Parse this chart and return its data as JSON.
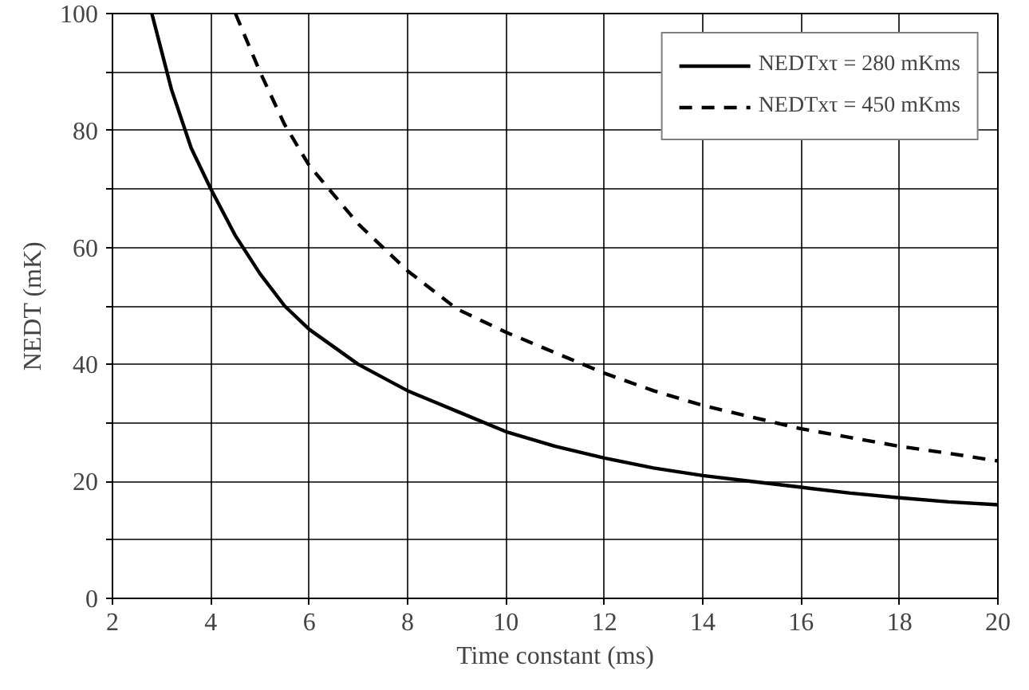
{
  "chart_data": {
    "type": "line",
    "xlabel": "Time constant (ms)",
    "ylabel": "NEDT (mK)",
    "xlim": [
      2,
      20
    ],
    "ylim": [
      0,
      100
    ],
    "xticks": [
      2,
      4,
      6,
      8,
      10,
      12,
      14,
      16,
      18,
      20
    ],
    "yticks": [
      0,
      {
        "value": 10,
        "label": null
      },
      20,
      {
        "value": 30,
        "label": null
      },
      40,
      {
        "value": 50,
        "label": null
      },
      60,
      {
        "value": 70,
        "label": null
      },
      80,
      {
        "value": 90,
        "label": null
      },
      100
    ],
    "grid": true,
    "legend": "top right",
    "series": [
      {
        "name": "NEDTxτ = 280 mKms",
        "color": "#000000",
        "line_style": "solid",
        "x": [
          2.8,
          3.2,
          3.6,
          4,
          4.5,
          5,
          5.5,
          6,
          7,
          8,
          9,
          10,
          11,
          12,
          13,
          14,
          15,
          16,
          17,
          18,
          19,
          20
        ],
        "values": [
          100,
          87,
          77,
          70,
          62,
          55.5,
          50,
          46,
          40,
          35.5,
          32,
          28.5,
          26,
          24,
          22.3,
          21,
          20,
          19,
          18,
          17.2,
          16.5,
          16
        ]
      },
      {
        "name": "NEDTxτ = 450 mKms",
        "color": "#000000",
        "line_style": "dashed",
        "x": [
          4.5,
          5,
          5.5,
          6,
          7,
          8,
          9,
          10,
          11,
          12,
          13,
          14,
          15,
          16,
          17,
          18,
          19,
          20
        ],
        "values": [
          100,
          90,
          81,
          74,
          64,
          56,
          49.5,
          45.5,
          42,
          38.5,
          35.5,
          33,
          31,
          29,
          27.5,
          26,
          24.8,
          23.5
        ]
      }
    ]
  }
}
